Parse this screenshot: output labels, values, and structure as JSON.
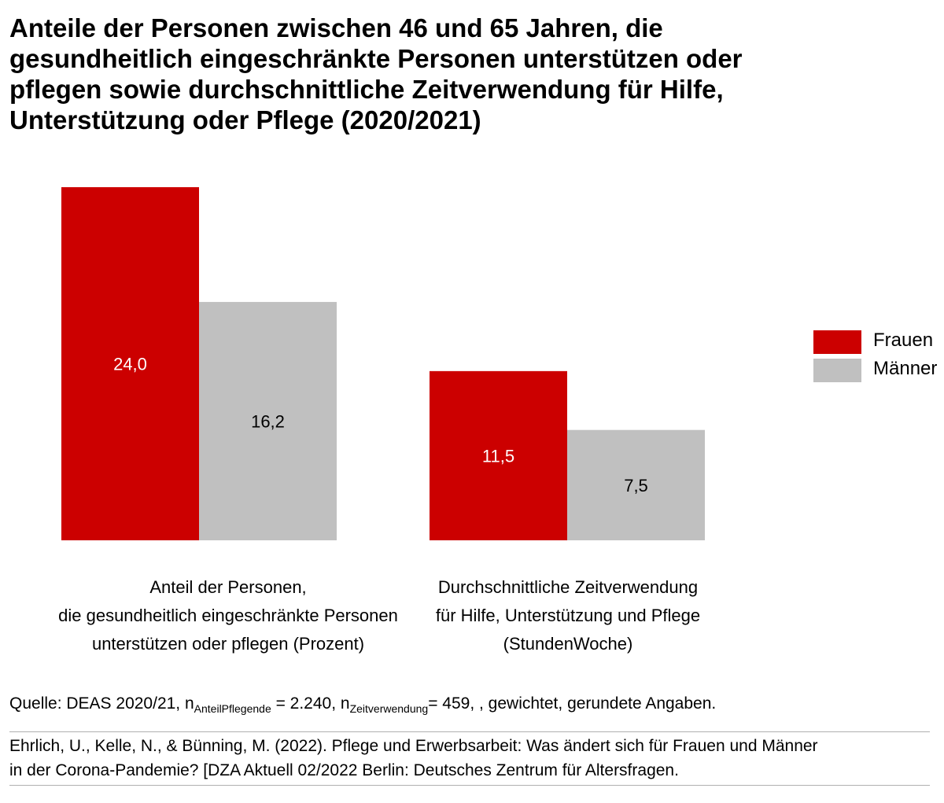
{
  "title_lines": [
    "Anteile der Personen zwischen 46 und 65 Jahren, die",
    "gesundheitlich eingeschränkte Personen unterstützen oder",
    "pflegen sowie durchschnittliche Zeitverwendung für Hilfe,",
    "Unterstützung oder Pflege (2020/2021)"
  ],
  "chart_data": {
    "type": "bar",
    "title": "Anteile der Personen zwischen 46 und 65 Jahren, die gesundheitlich eingeschränkte Personen unterstützen oder pflegen sowie durchschnittliche Zeitverwendung für Hilfe, Unterstützung oder Pflege (2020/2021)",
    "categories": [
      [
        "Anteil der Personen,",
        "die gesundheitlich eingeschränkte Personen",
        "unterstützen oder pflegen (Prozent)"
      ],
      [
        "Durchschnittliche Zeitverwendung",
        "für Hilfe, Unterstützung und Pflege",
        "(StundenWoche)"
      ]
    ],
    "series": [
      {
        "name": "Frauen",
        "values": [
          24.0,
          11.5
        ],
        "labels": [
          "24,0",
          "11,5"
        ],
        "color": "#cc0000",
        "label_color": "#ffffff"
      },
      {
        "name": "Männer",
        "values": [
          16.2,
          7.5
        ],
        "labels": [
          "16,2",
          "7,5"
        ],
        "color": "#c0c0c0",
        "label_color": "#000000"
      }
    ],
    "ylim": [
      0,
      24.0
    ],
    "grid": false,
    "legend_position": "right"
  },
  "source": {
    "prefix": "Quelle: DEAS 2020/21, n",
    "sub1": "AnteilPflegende",
    "mid": " = 2.240, n",
    "sub2": "Zeitverwendung",
    "suffix": "= 459, , gewichtet, gerundete Angaben."
  },
  "citation_lines": [
    "Ehrlich, U., Kelle, N., & Bünning, M. (2022). Pflege und Erwerbsarbeit: Was ändert sich für Frauen und Männer",
    "in der Corona-Pandemie? [DZA Aktuell 02/2022 Berlin: Deutsches Zentrum für Altersfragen."
  ]
}
